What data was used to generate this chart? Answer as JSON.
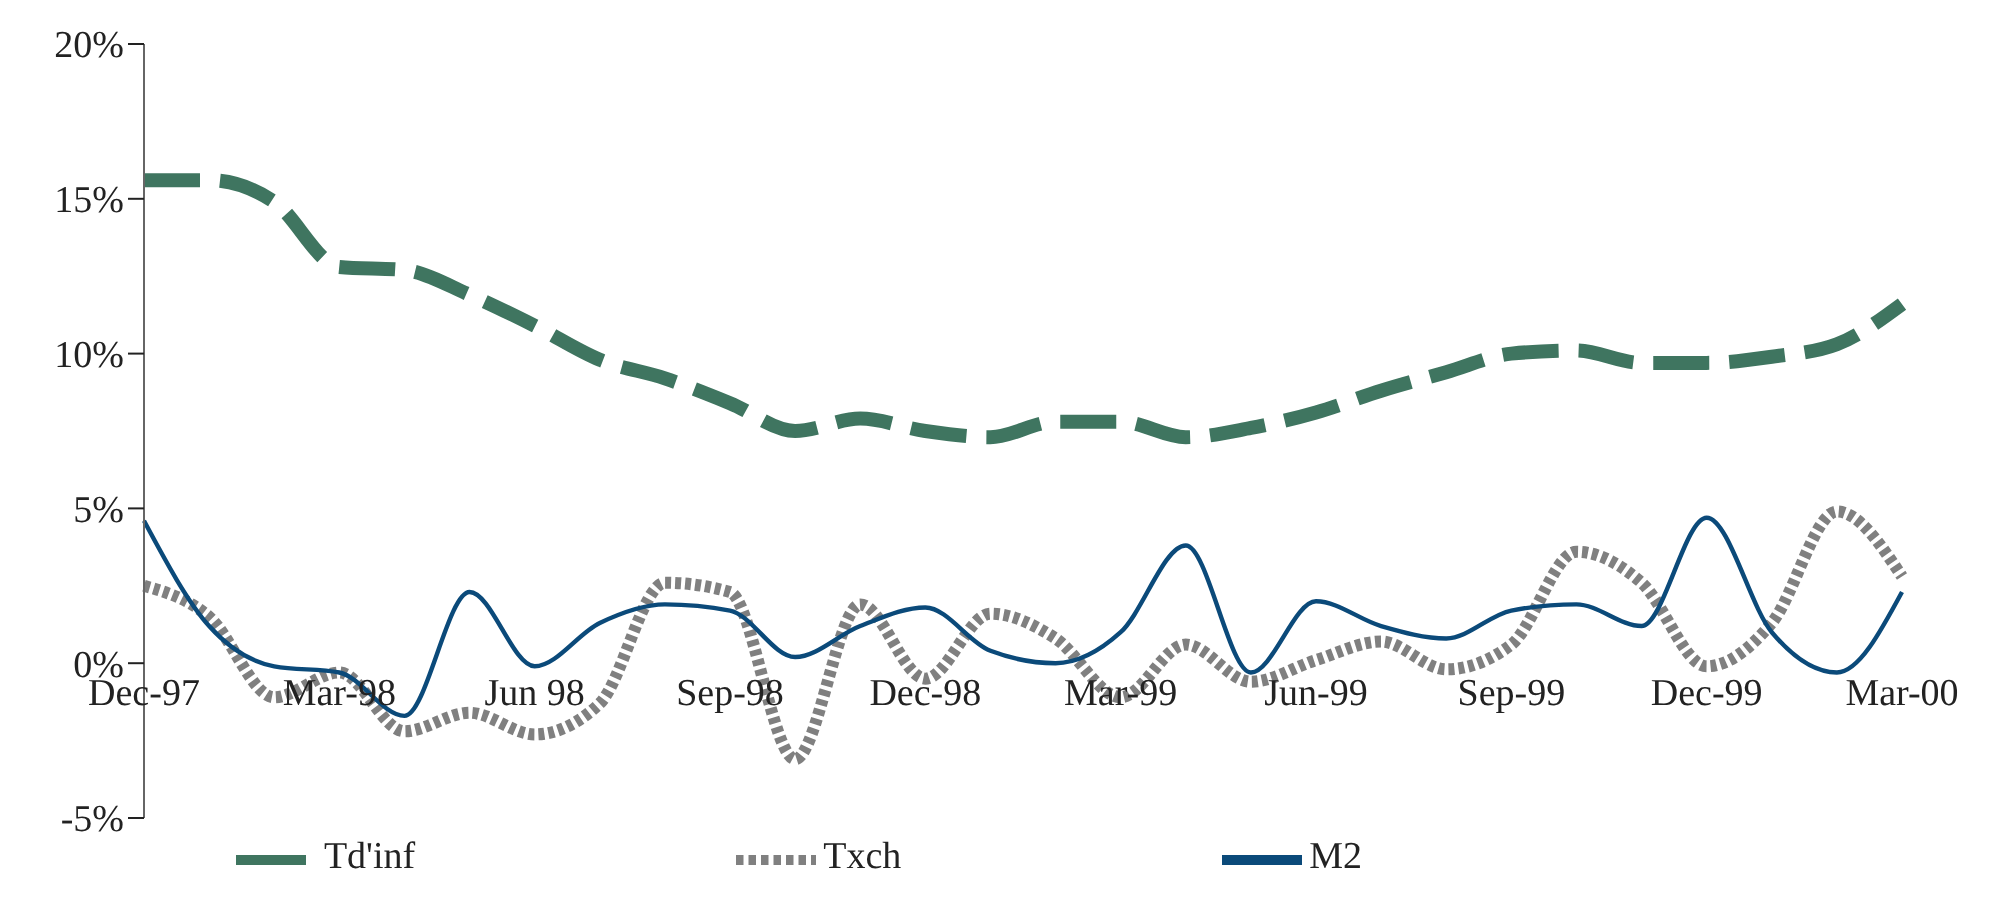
{
  "chart_data": {
    "type": "line",
    "categories": [
      "Dec-97",
      null,
      null,
      "Mar-98",
      null,
      null,
      "Jun 98",
      null,
      null,
      "Sep-98",
      null,
      null,
      "Dec-98",
      null,
      null,
      "Mar-99",
      null,
      null,
      "Jun-99",
      null,
      null,
      "Sep-99",
      null,
      null,
      "Dec-99",
      null,
      null,
      "Mar-00"
    ],
    "series": [
      {
        "name": "Td'inf",
        "color": "#3f7560",
        "line_style": "dashed",
        "values": [
          15.6,
          15.6,
          14.9,
          12.8,
          12.7,
          11.9,
          10.9,
          9.8,
          9.2,
          8.4,
          7.5,
          7.9,
          7.5,
          7.3,
          7.8,
          7.8,
          7.3,
          7.6,
          8.1,
          8.8,
          9.4,
          10.0,
          10.1,
          9.7,
          9.7,
          9.9,
          10.3,
          11.6
        ]
      },
      {
        "name": "Txch",
        "color": "#808080",
        "line_style": "dotted",
        "values": [
          2.5,
          1.5,
          -1.1,
          -0.3,
          -2.2,
          -1.6,
          -2.3,
          -1.3,
          2.6,
          2.3,
          -3.1,
          1.9,
          -0.5,
          1.6,
          0.8,
          -1.1,
          0.6,
          -0.6,
          0.1,
          0.7,
          -0.2,
          0.6,
          3.6,
          2.6,
          -0.1,
          1.3,
          4.9,
          2.8
        ]
      },
      {
        "name": "M2",
        "color": "#0b4a7a",
        "line_style": "solid",
        "values": [
          4.6,
          1.2,
          -0.1,
          -0.3,
          -1.7,
          2.3,
          -0.1,
          1.3,
          1.9,
          1.7,
          0.2,
          1.2,
          1.8,
          0.4,
          0.0,
          1.0,
          3.8,
          -0.3,
          2.0,
          1.2,
          0.8,
          1.7,
          1.9,
          1.2,
          4.7,
          1.0,
          -0.3,
          2.3
        ]
      }
    ],
    "ylim": [
      -5,
      20
    ],
    "yticks": [
      {
        "value": -5,
        "label": "-5%"
      },
      {
        "value": 0,
        "label": "0%"
      },
      {
        "value": 5,
        "label": "5%"
      },
      {
        "value": 10,
        "label": "10%"
      },
      {
        "value": 15,
        "label": "15%"
      },
      {
        "value": 20,
        "label": "20%"
      }
    ],
    "grid": false,
    "legend": "bottom"
  }
}
